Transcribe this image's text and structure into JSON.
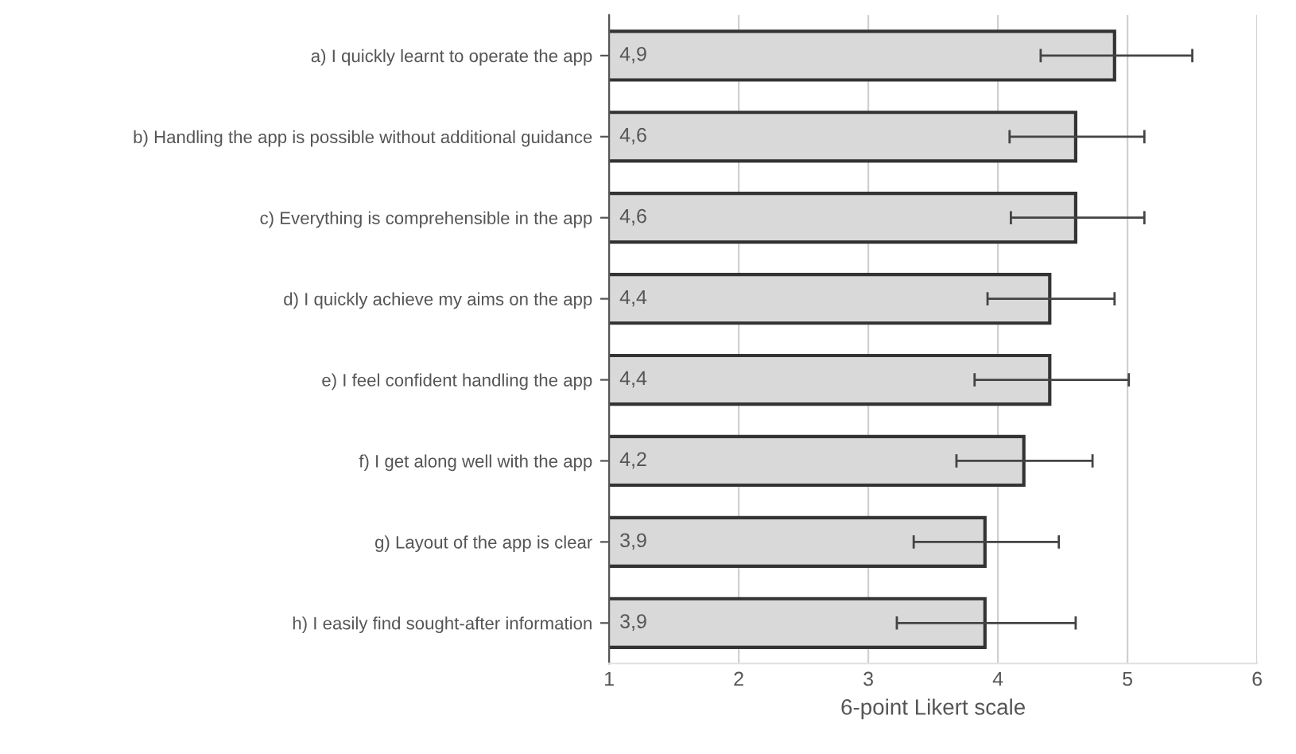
{
  "chart_data": {
    "type": "bar",
    "orientation": "horizontal",
    "xlabel": "6-point Likert scale",
    "categories": [
      "a) I quickly learnt to operate the app",
      "b) Handling the app is possible without additional guidance",
      "c) Everything is comprehensible in the app",
      "d) I quickly achieve my aims on the app",
      "e) I feel confident handling the app",
      "f) I get along well with the app",
      "g) Layout of the app is clear",
      "h) I easily find sought-after information"
    ],
    "values": [
      4.9,
      4.6,
      4.6,
      4.4,
      4.4,
      4.2,
      3.9,
      3.9
    ],
    "value_labels": [
      "4,9",
      "4,6",
      "4,6",
      "4,4",
      "4,4",
      "4,2",
      "3,9",
      "3,9"
    ],
    "errors": [
      [
        4.33,
        5.5
      ],
      [
        4.09,
        5.13
      ],
      [
        4.1,
        5.13
      ],
      [
        3.92,
        4.9
      ],
      [
        3.82,
        5.01
      ],
      [
        3.68,
        4.73
      ],
      [
        3.35,
        4.47
      ],
      [
        3.22,
        4.6
      ]
    ],
    "color": "#d9d9d9",
    "xlim": [
      1,
      6
    ],
    "xticks": [
      1,
      2,
      3,
      4,
      5,
      6
    ],
    "grid": "x"
  }
}
